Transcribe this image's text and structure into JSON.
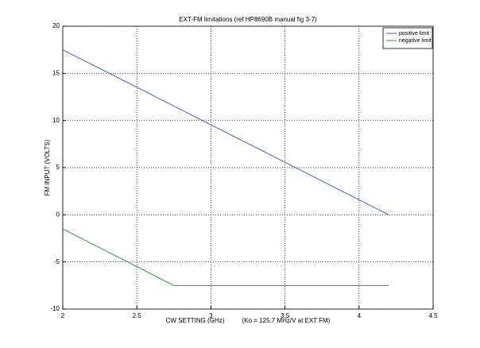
{
  "chart_data": {
    "type": "line",
    "title": "EXT-FM limitations (ref HP8690B manual fig 3-7)",
    "x_label": "CW SETTING (GHz)          (Ko = 125.7 MHz/V at EXT FM)",
    "y_label": "FM INPUT (VOLTS)",
    "series": [
      {
        "name": "positive limit",
        "color": "#4a5fd0",
        "x": [
          2,
          4.2
        ],
        "values": [
          17.5,
          0
        ]
      },
      {
        "name": "negative limit",
        "color": "#2f9a2f",
        "x": [
          2,
          2.75,
          4.2
        ],
        "values": [
          -1.5,
          -7.5,
          -7.5
        ]
      }
    ],
    "xlim": [
      2,
      4.5
    ],
    "xticks": [
      2,
      2.5,
      3,
      3.5,
      4,
      4.5
    ],
    "ylim": [
      -10,
      20
    ],
    "yticks": [
      -10,
      -5,
      0,
      5,
      10,
      15,
      20
    ],
    "grid": true,
    "legend": "upper-right"
  }
}
